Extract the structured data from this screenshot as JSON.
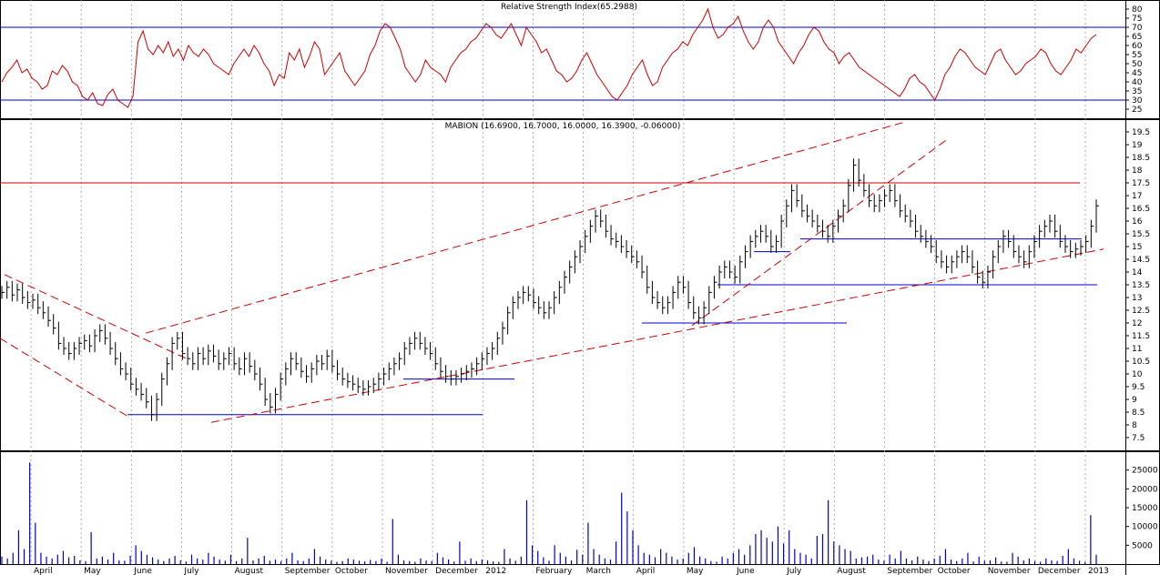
{
  "chart_data": [
    {
      "type": "line",
      "title": "Relative Strength Index(65.2988)",
      "yticks": [
        25,
        30,
        35,
        40,
        45,
        50,
        55,
        60,
        65,
        70,
        75,
        80
      ],
      "ylim": [
        20,
        85
      ],
      "levels": [
        70,
        30
      ],
      "line_color": "#cc0000",
      "level_color": "#0000cc",
      "series": [
        {
          "values": [
            40,
            45,
            48,
            52,
            45,
            47,
            42,
            40,
            36,
            38,
            46,
            44,
            49,
            46,
            40,
            38,
            32,
            30,
            34,
            28,
            27,
            33,
            36,
            30,
            28,
            26,
            32,
            62,
            68,
            58,
            55,
            60,
            56,
            62,
            54,
            58,
            52,
            60,
            56,
            54,
            58,
            55,
            50,
            48,
            46,
            44,
            50,
            54,
            58,
            54,
            60,
            56,
            50,
            46,
            38,
            44,
            42,
            56,
            52,
            58,
            48,
            54,
            62,
            58,
            44,
            48,
            52,
            56,
            46,
            42,
            38,
            42,
            46,
            55,
            60,
            68,
            72,
            70,
            64,
            58,
            48,
            44,
            40,
            44,
            52,
            48,
            46,
            44,
            40,
            48,
            52,
            56,
            58,
            62,
            64,
            68,
            72,
            70,
            66,
            64,
            68,
            72,
            66,
            60,
            70,
            66,
            62,
            56,
            58,
            52,
            46,
            44,
            40,
            42,
            46,
            52,
            56,
            50,
            44,
            40,
            36,
            32,
            30,
            34,
            38,
            44,
            48,
            52,
            44,
            38,
            40,
            48,
            52,
            56,
            58,
            62,
            60,
            66,
            70,
            74,
            80,
            70,
            64,
            66,
            70,
            72,
            76,
            68,
            62,
            58,
            62,
            70,
            74,
            70,
            62,
            58,
            54,
            50,
            56,
            60,
            66,
            70,
            68,
            62,
            58,
            56,
            50,
            54,
            56,
            52,
            48,
            46,
            44,
            42,
            40,
            38,
            36,
            34,
            32,
            36,
            42,
            44,
            40,
            38,
            34,
            30,
            36,
            44,
            48,
            54,
            58,
            56,
            52,
            48,
            46,
            44,
            50,
            56,
            58,
            52,
            48,
            44,
            46,
            50,
            52,
            54,
            58,
            56,
            50,
            46,
            44,
            48,
            52,
            58,
            56,
            60,
            64,
            66
          ]
        }
      ]
    },
    {
      "type": "bar",
      "title": "MABION (16.6900, 16.7000, 16.0000, 16.3900, -0.06000)",
      "yticks": [
        7.5,
        8.0,
        8.5,
        9.0,
        9.5,
        10.0,
        10.5,
        11.0,
        11.5,
        12.0,
        12.5,
        13.0,
        13.5,
        14.0,
        14.5,
        15.0,
        15.5,
        16.0,
        16.5,
        17.0,
        17.5,
        18.0,
        18.5,
        19.0,
        19.5
      ],
      "ylim": [
        7.0,
        20.0
      ],
      "bar_color": "#000000",
      "trendline_color": "#cc0000",
      "hline_color": "#0000cc",
      "series": [
        {
          "values": [
            13.2,
            13.4,
            13.1,
            13.3,
            13.0,
            12.8,
            12.9,
            12.6,
            12.4,
            12.1,
            11.8,
            11.2,
            11.0,
            10.8,
            11.0,
            11.2,
            11.3,
            11.1,
            11.5,
            11.7,
            11.4,
            11.0,
            10.6,
            10.2,
            10.0,
            9.6,
            9.4,
            9.2,
            8.9,
            8.4,
            9.0,
            9.8,
            10.4,
            11.2,
            11.4,
            10.8,
            10.6,
            10.4,
            10.8,
            10.6,
            10.9,
            10.7,
            10.4,
            10.6,
            10.8,
            10.4,
            10.2,
            10.6,
            10.3,
            10.0,
            9.6,
            9.0,
            8.7,
            9.2,
            9.8,
            10.2,
            10.6,
            10.4,
            10.1,
            9.9,
            10.2,
            10.5,
            10.4,
            10.7,
            10.3,
            10.0,
            9.8,
            9.7,
            9.6,
            9.5,
            9.4,
            9.5,
            9.6,
            9.8,
            10.0,
            10.2,
            10.4,
            10.6,
            11.0,
            11.2,
            11.4,
            11.2,
            11.0,
            10.8,
            10.4,
            10.1,
            9.9,
            9.8,
            9.9,
            10.0,
            10.1,
            10.2,
            10.4,
            10.6,
            10.8,
            11.0,
            11.4,
            11.8,
            12.4,
            12.8,
            13.0,
            13.2,
            13.1,
            12.8,
            12.6,
            12.4,
            12.6,
            13.0,
            13.4,
            13.8,
            14.2,
            14.6,
            15.0,
            15.4,
            15.8,
            16.2,
            16.0,
            15.6,
            15.3,
            15.2,
            15.0,
            14.8,
            14.6,
            14.4,
            14.0,
            13.4,
            13.0,
            12.8,
            12.6,
            12.8,
            13.2,
            13.6,
            13.4,
            12.8,
            12.4,
            12.2,
            12.6,
            13.2,
            13.6,
            14.0,
            14.2,
            14.0,
            13.8,
            14.4,
            14.8,
            15.2,
            15.4,
            15.6,
            15.4,
            15.0,
            15.2,
            16.0,
            16.6,
            17.2,
            16.8,
            16.4,
            16.2,
            16.0,
            15.8,
            15.6,
            15.4,
            15.8,
            16.2,
            16.6,
            17.4,
            18.2,
            17.6,
            17.2,
            16.8,
            16.6,
            16.8,
            17.0,
            17.2,
            16.8,
            16.4,
            16.2,
            16.0,
            15.6,
            15.4,
            15.2,
            15.0,
            14.6,
            14.4,
            14.2,
            14.4,
            14.6,
            14.8,
            14.6,
            14.2,
            13.8,
            13.6,
            14.0,
            14.6,
            15.0,
            15.4,
            15.2,
            14.8,
            14.6,
            14.4,
            14.8,
            15.2,
            15.6,
            15.8,
            16.0,
            15.6,
            15.2,
            15.0,
            14.8,
            14.9,
            15.0,
            15.2,
            15.8,
            16.6
          ]
        }
      ]
    },
    {
      "type": "bar",
      "title": "",
      "yticks": [
        5000,
        10000,
        15000,
        20000,
        25000
      ],
      "ylim": [
        0,
        30000
      ],
      "bar_color": "#0000cc",
      "xticks": [
        "April",
        "May",
        "June",
        "July",
        "August",
        "September",
        "October",
        "November",
        "December",
        "2012",
        "February",
        "March",
        "April",
        "May",
        "June",
        "July",
        "August",
        "September",
        "October",
        "November",
        "December",
        "2013"
      ],
      "series": [
        {
          "values": [
            2000,
            1500,
            3000,
            9000,
            4000,
            27000,
            11000,
            3000,
            2000,
            1500,
            2500,
            3500,
            1800,
            2200,
            1000,
            800,
            8500,
            1500,
            2000,
            1200,
            3000,
            1000,
            900,
            2200,
            5000,
            3500,
            2500,
            1800,
            1200,
            800,
            1500,
            2200,
            1000,
            700,
            2500,
            1500,
            1200,
            3000,
            2000,
            1200,
            900,
            2500,
            800,
            1500,
            7000,
            1000,
            1500,
            2200,
            900,
            1200,
            800,
            1500,
            3000,
            1000,
            800,
            1500,
            4000,
            2000,
            1200,
            900,
            600,
            800,
            1500,
            1200,
            900,
            700,
            1100,
            800,
            1500,
            600,
            12000,
            2500,
            1000,
            800,
            600,
            1500,
            1000,
            800,
            3000,
            1800,
            1200,
            700,
            6000,
            900,
            1500,
            800,
            1200,
            1000,
            700,
            600,
            4000,
            1500,
            900,
            2000,
            17000,
            5000,
            3500,
            1800,
            900,
            5000,
            3000,
            2000,
            1000,
            3800,
            2500,
            11000,
            4000,
            2500,
            1500,
            1200,
            6000,
            19000,
            14000,
            9000,
            5000,
            3000,
            2500,
            1800,
            4000,
            3000,
            2000,
            1200,
            1500,
            3000,
            4500,
            2000,
            1500,
            800,
            600,
            2000,
            1500,
            3000,
            4000,
            2500,
            5000,
            8000,
            9000,
            7000,
            6000,
            10000,
            5500,
            9000,
            4000,
            3000,
            2500,
            1500,
            7500,
            8000,
            17000,
            6000,
            5000,
            4000,
            3500,
            1500,
            1800,
            2000,
            2500,
            1200,
            900,
            2500,
            1500,
            3500,
            1500,
            1000,
            2000,
            1200,
            800,
            1500,
            2200,
            4000,
            1200,
            800,
            1500,
            3000,
            700,
            2000,
            900,
            1000,
            1800,
            700,
            600,
            3000,
            2000,
            1000,
            1500,
            800,
            600,
            1500,
            1000,
            800,
            2200,
            4000,
            1500,
            900,
            600,
            13000,
            2500
          ]
        }
      ]
    }
  ]
}
